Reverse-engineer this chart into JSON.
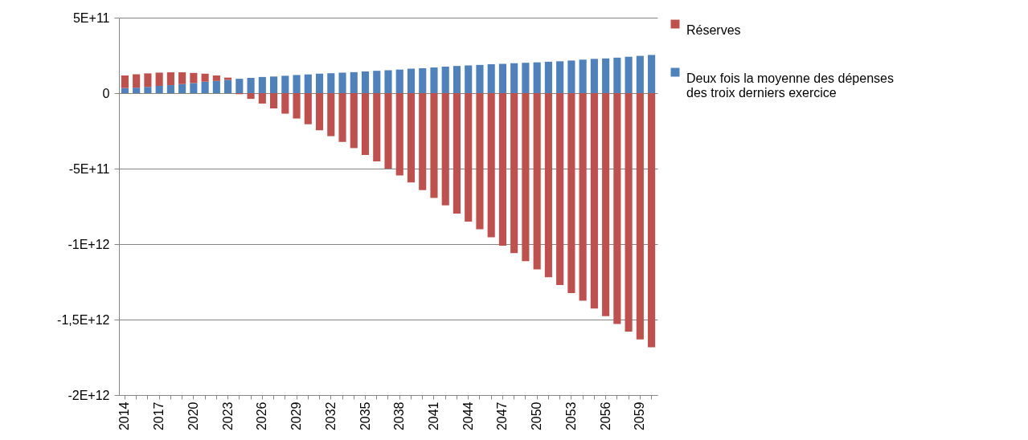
{
  "chart_data": {
    "type": "bar",
    "stacked": true,
    "categories": [
      "2014",
      null,
      null,
      "2017",
      null,
      null,
      "2020",
      null,
      null,
      "2023",
      null,
      null,
      "2026",
      null,
      null,
      "2029",
      null,
      null,
      "2032",
      null,
      null,
      "2035",
      null,
      null,
      "2038",
      null,
      null,
      "2041",
      null,
      null,
      "2044",
      null,
      null,
      "2047",
      null,
      null,
      "2050",
      null,
      null,
      "2053",
      null,
      null,
      "2056",
      null,
      null,
      "2059",
      null
    ],
    "series": [
      {
        "name": "Deux fois la moyenne des dépenses des troix derniers exercice",
        "color": "#4f81bd",
        "values": [
          34000000000.0,
          36000000000.0,
          41000000000.0,
          48000000000.0,
          53000000000.0,
          60000000000.0,
          67000000000.0,
          76000000000.0,
          81000000000.0,
          88000000000.0,
          95000000000.0,
          101000000000.0,
          107000000000.0,
          110000000000.0,
          115000000000.0,
          120000000000.0,
          124000000000.0,
          129000000000.0,
          132000000000.0,
          136000000000.0,
          139000000000.0,
          144000000000.0,
          148000000000.0,
          151000000000.0,
          156000000000.0,
          162000000000.0,
          165000000000.0,
          170000000000.0,
          175000000000.0,
          180000000000.0,
          184000000000.0,
          187000000000.0,
          191000000000.0,
          194000000000.0,
          198000000000.0,
          201000000000.0,
          204000000000.0,
          208000000000.0,
          211000000000.0,
          216000000000.0,
          222000000000.0,
          227000000000.0,
          230000000000.0,
          235000000000.0,
          241000000000.0,
          247000000000.0,
          253000000000.0
        ]
      },
      {
        "name": "Réserves",
        "color": "#c0504d",
        "values": [
          83000000000.0,
          89000000000.0,
          90000000000.0,
          88000000000.0,
          85000000000.0,
          78000000000.0,
          67000000000.0,
          53000000000.0,
          36000000000.0,
          15000000000.0,
          -7000000000.0,
          -38000000000.0,
          -69000000000.0,
          -101000000000.0,
          -136000000000.0,
          -168000000000.0,
          -206000000000.0,
          -246000000000.0,
          -285000000000.0,
          -323000000000.0,
          -364000000000.0,
          -409000000000.0,
          -452000000000.0,
          -500000000000.0,
          -545000000000.0,
          -592000000000.0,
          -642000000000.0,
          -694000000000.0,
          -743000000000.0,
          -798000000000.0,
          -851000000000.0,
          -902000000000.0,
          -955000000000.0,
          -1010000000000.0,
          -1060000000000.0,
          -1113000000000.0,
          -1168000000000.0,
          -1219000000000.0,
          -1271000000000.0,
          -1324000000000.0,
          -1375000000000.0,
          -1427000000000.0,
          -1478000000000.0,
          -1529000000000.0,
          -1580000000000.0,
          -1632000000000.0,
          -1683000000000.0
        ]
      }
    ],
    "ylim": [
      -2000000000000.0,
      500000000000.0
    ],
    "yticks": [
      {
        "value": 500000000000.0,
        "label": "5E+11"
      },
      0,
      {
        "value": -500000000000.0,
        "label": "-5E+11"
      },
      {
        "value": -1000000000000.0,
        "label": "-1E+12"
      },
      {
        "value": -1500000000000.0,
        "label": "-1,5E+12"
      },
      {
        "value": -2000000000000.0,
        "label": "-2E+12"
      }
    ],
    "grid": "y",
    "legend": "right"
  }
}
